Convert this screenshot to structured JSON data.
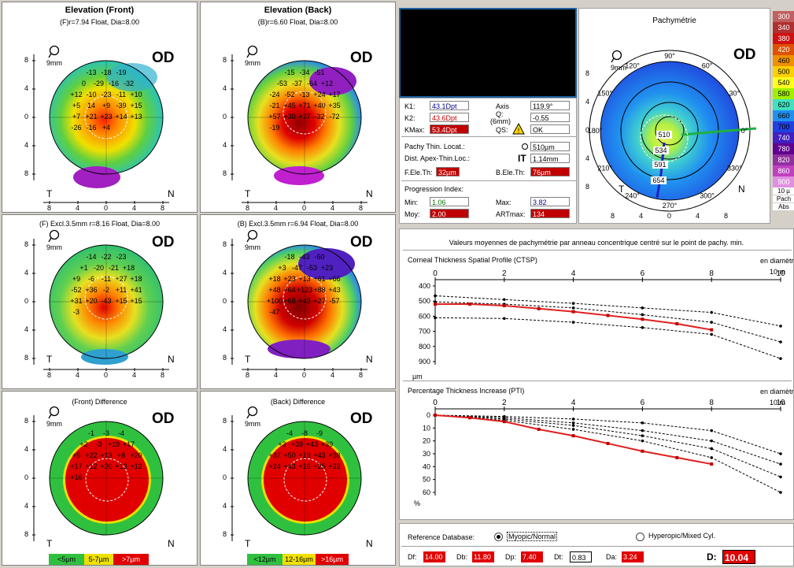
{
  "eye": "OD",
  "scale_label": "9mm",
  "grid_labels": {
    "t": "T",
    "n": "N"
  },
  "axis_ticks": [
    "8",
    "4",
    "0",
    "4",
    "8"
  ],
  "maps": {
    "front": {
      "title": "Elevation (Front)",
      "sub": "(F)r=7.94 Float, Dia=8.00",
      "values": [
        "-13",
        "-18",
        "-19",
        "0",
        "-29",
        "-16",
        "-32",
        "+12",
        "-10",
        "-23",
        "-11",
        "+10",
        "+5",
        "14",
        "+9",
        "-39",
        "+15",
        "+7",
        "+21",
        "+23",
        "+14",
        "+13",
        "-26",
        "-16",
        "+4"
      ]
    },
    "back": {
      "title": "Elevation (Back)",
      "sub": "(B)r=6.60 Float, Dia=8.00",
      "values": [
        "-15",
        "-34",
        "-51",
        "-53",
        "-37",
        "-64",
        "+12",
        "-24",
        "-52",
        "-13",
        "+24",
        "+17",
        "-21",
        "+45",
        "+71",
        "+40",
        "+35",
        "+57",
        "+30",
        "+27",
        "-32",
        "-72",
        "-19"
      ]
    },
    "front_excl": {
      "sub": "(F) Excl.3.5mm  r=8.16 Float, Dia=8.00",
      "values": [
        "-14",
        "-22",
        "-23",
        "+1",
        "-20",
        "-21",
        "+18",
        "+9",
        "-6",
        "-11",
        "+27",
        "+18",
        "-52",
        "+36",
        "-2",
        "+11",
        "+41",
        "+31",
        "+20",
        "-43",
        "+15",
        "+15",
        "-3"
      ]
    },
    "back_excl": {
      "sub": "(B) Excl.3.5mm  r=6.94 Float, Dia=8.00",
      "values": [
        "-18",
        "-43",
        "-60",
        "+3",
        "-47",
        "-53",
        "+23",
        "+18",
        "+23",
        "+13",
        "+61",
        "+66",
        "+48",
        "+64",
        "+123",
        "+88",
        "+43",
        "+100",
        "+68",
        "+43",
        "+27",
        "-57",
        "-47"
      ]
    },
    "front_diff": {
      "sub": "(Front) Difference",
      "values": [
        "-1",
        "-3",
        "-4",
        "+2",
        "-3",
        "+19",
        "+17",
        "+5",
        "+22",
        "+13",
        "+8",
        "+20",
        "+17",
        "+12",
        "+20",
        "+13",
        "+12",
        "+16"
      ]
    },
    "back_diff": {
      "sub": "(Back) Difference",
      "values": [
        "-4",
        "-8",
        "-9",
        "+3",
        "+39",
        "+43",
        "+39",
        "+37",
        "+50",
        "+19",
        "+43",
        "+38",
        "+24",
        "+43",
        "+16",
        "+25",
        "+22"
      ]
    }
  },
  "legend_front": [
    "<5µm",
    "5-7µm",
    ">7µm"
  ],
  "legend_back": [
    "<12µm",
    "12-16µm",
    ">16µm"
  ],
  "keratometry": {
    "k1_label": "K1:",
    "k1": "43.1Dpt",
    "k2_label": "K2:",
    "k2": "43.6Dpt",
    "kmax_label": "KMax:",
    "kmax": "53.4Dpt",
    "axis_label": "Axis",
    "axis": "119.9°",
    "q_label": "Q:",
    "q_sub": "(6mm)",
    "q": "-0.55",
    "qs_label": "QS:",
    "qs": "OK",
    "pachy_loc_label": "Pachy Thin. Locat.:",
    "pachy_loc": "510µm",
    "apex_label": "Dist. Apex-Thin.Loc.:",
    "apex_it": "IT",
    "apex": "1.14mm",
    "fele_label": "F.Ele.Th:",
    "fele": "32µm",
    "bele_label": "B.Ele.Th:",
    "bele": "76µm",
    "prog_label": "Progression Index:",
    "min_label": "Min:",
    "min": "1.06",
    "max_label": "Max:",
    "max": "3.82",
    "moy_label": "Moy:",
    "moy": "2.00",
    "art_label": "ARTmax:",
    "art": "134"
  },
  "pachy": {
    "title": "Pachymétrie",
    "degrees": [
      "90°",
      "120°",
      "60°",
      "150°",
      "30°",
      "180°",
      "0°",
      "210°",
      "330°",
      "240°",
      "270°",
      "300°"
    ],
    "values": [
      "510",
      "534",
      "591",
      "654"
    ],
    "color_scale": [
      {
        "v": "300",
        "c": "#c06060"
      },
      {
        "v": "340",
        "c": "#b03030"
      },
      {
        "v": "380",
        "c": "#d01010"
      },
      {
        "v": "420",
        "c": "#e05000"
      },
      {
        "v": "460",
        "c": "#f09000"
      },
      {
        "v": "500",
        "c": "#ffd000"
      },
      {
        "v": "540",
        "c": "#ffff20"
      },
      {
        "v": "580",
        "c": "#a0f000"
      },
      {
        "v": "620",
        "c": "#40e0c0"
      },
      {
        "v": "660",
        "c": "#2090f0"
      },
      {
        "v": "700",
        "c": "#2040e0"
      },
      {
        "v": "740",
        "c": "#4020c0"
      },
      {
        "v": "780",
        "c": "#600090"
      },
      {
        "v": "820",
        "c": "#9030a0"
      },
      {
        "v": "860",
        "c": "#c040c0"
      },
      {
        "v": "900",
        "c": "#e090e0"
      }
    ],
    "scale_tail": [
      "10 µ",
      "Pach",
      "Abs"
    ]
  },
  "profiles": {
    "header": "Valeurs moyennes de pachymétrie par anneau concentrique centré sur le point de pachy. min.",
    "diam_label": "en diamètre",
    "unit_m": "10 m",
    "ctsp_title": "Corneal Thickness Spatial Profile (CTSP)",
    "pti_title": "Percentage Thickness Increase (PTI)",
    "ctsp_unit": "µm",
    "pti_unit": "%"
  },
  "chart_data": [
    {
      "type": "line",
      "title": "Corneal Thickness Spatial Profile (CTSP)",
      "xlabel": "",
      "ylabel": "µm",
      "xlim": [
        0,
        10
      ],
      "ylim": [
        400,
        900
      ],
      "x_ticks": [
        0,
        2,
        4,
        6,
        8,
        10
      ],
      "y_ticks": [
        400,
        500,
        600,
        700,
        800,
        900
      ],
      "y_inverted": true,
      "series": [
        {
          "x": [
            0,
            2,
            4,
            6,
            8,
            10
          ],
          "values": [
            465,
            490,
            515,
            545,
            575,
            665
          ],
          "style": "dashed"
        },
        {
          "x": [
            0,
            2,
            4,
            6,
            8,
            10
          ],
          "values": [
            505,
            520,
            545,
            590,
            640,
            770
          ],
          "style": "dashed"
        },
        {
          "x": [
            0,
            2,
            4,
            6,
            8,
            10
          ],
          "values": [
            610,
            615,
            640,
            675,
            720,
            880
          ],
          "style": "dashed"
        },
        {
          "x": [
            0,
            1,
            2,
            3,
            4,
            5,
            6,
            7,
            8
          ],
          "values": [
            520,
            520,
            530,
            550,
            570,
            595,
            620,
            650,
            690
          ],
          "style": "patient"
        }
      ]
    },
    {
      "type": "line",
      "title": "Percentage Thickness Increase (PTI)",
      "xlabel": "",
      "ylabel": "%",
      "xlim": [
        0,
        10
      ],
      "ylim": [
        0,
        60
      ],
      "x_ticks": [
        0,
        2,
        4,
        6,
        8,
        10
      ],
      "y_ticks": [
        0,
        10,
        20,
        30,
        40,
        50,
        60
      ],
      "y_inverted": true,
      "series": [
        {
          "x": [
            0,
            2,
            4,
            6,
            8,
            10
          ],
          "values": [
            0,
            1,
            3,
            6,
            12,
            30
          ],
          "style": "dashed"
        },
        {
          "x": [
            0,
            2,
            4,
            6,
            8,
            10
          ],
          "values": [
            0,
            2,
            6,
            12,
            20,
            38
          ],
          "style": "dashed"
        },
        {
          "x": [
            0,
            2,
            4,
            6,
            8,
            10
          ],
          "values": [
            0,
            3,
            8,
            16,
            26,
            48
          ],
          "style": "dashed"
        },
        {
          "x": [
            0,
            2,
            4,
            6,
            8,
            10
          ],
          "values": [
            0,
            4,
            11,
            20,
            33,
            60
          ],
          "style": "dashed"
        },
        {
          "x": [
            0,
            1,
            2,
            3,
            4,
            5,
            6,
            7,
            8
          ],
          "values": [
            0,
            2,
            5,
            11,
            16,
            22,
            28,
            33,
            38
          ],
          "style": "patient"
        }
      ]
    }
  ],
  "reference": {
    "label": "Reference Database:",
    "opt1": "Myopic/Normal",
    "opt2": "Hyperopic/Mixed Cyl."
  },
  "dscores": {
    "df_label": "Df:",
    "df": "14.00",
    "db_label": "Db:",
    "db": "11.80",
    "dp_label": "Dp:",
    "dp": "7.40",
    "dt_label": "Dt:",
    "dt": "0.83",
    "da_label": "Da:",
    "da": "3.24",
    "d_label": "D:",
    "d": "10.04"
  }
}
